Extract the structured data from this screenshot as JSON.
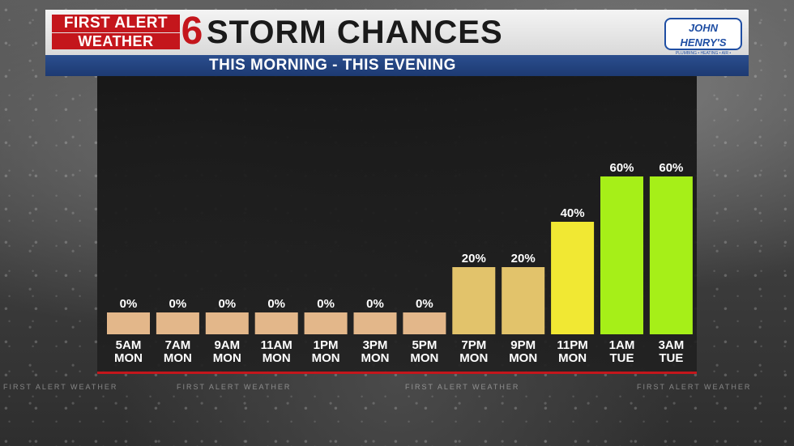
{
  "header": {
    "brand_line1": "FIRST ALERT",
    "brand_line2": "WEATHER",
    "brand_number": "6",
    "title": "STORM CHANCES",
    "subtitle": "THIS MORNING  -  THIS EVENING",
    "sponsor_name": "JOHN HENRY'S",
    "sponsor_tagline": "PLUMBING • HEATING • AIR • ELECTRICAL"
  },
  "watermark": "FIRST ALERT WEATHER",
  "colors": {
    "zero": "#e3b78a",
    "low": "#e2c36b",
    "mid": "#f1e833",
    "high": "#a6ef18",
    "accent_red": "#c4161c",
    "navy": "#1d3a72"
  },
  "chart_data": {
    "type": "bar",
    "title": "STORM CHANCES",
    "subtitle": "THIS MORNING  -  THIS EVENING",
    "ylim": [
      0,
      100
    ],
    "categories": [
      {
        "time": "5AM",
        "day": "MON"
      },
      {
        "time": "7AM",
        "day": "MON"
      },
      {
        "time": "9AM",
        "day": "MON"
      },
      {
        "time": "11AM",
        "day": "MON"
      },
      {
        "time": "1PM",
        "day": "MON"
      },
      {
        "time": "3PM",
        "day": "MON"
      },
      {
        "time": "5PM",
        "day": "MON"
      },
      {
        "time": "7PM",
        "day": "MON"
      },
      {
        "time": "9PM",
        "day": "MON"
      },
      {
        "time": "11PM",
        "day": "MON"
      },
      {
        "time": "1AM",
        "day": "TUE"
      },
      {
        "time": "3AM",
        "day": "TUE"
      }
    ],
    "values": [
      0,
      0,
      0,
      0,
      0,
      0,
      0,
      20,
      20,
      40,
      60,
      60
    ],
    "value_labels": [
      "0%",
      "0%",
      "0%",
      "0%",
      "0%",
      "0%",
      "0%",
      "20%",
      "20%",
      "40%",
      "60%",
      "60%"
    ]
  }
}
